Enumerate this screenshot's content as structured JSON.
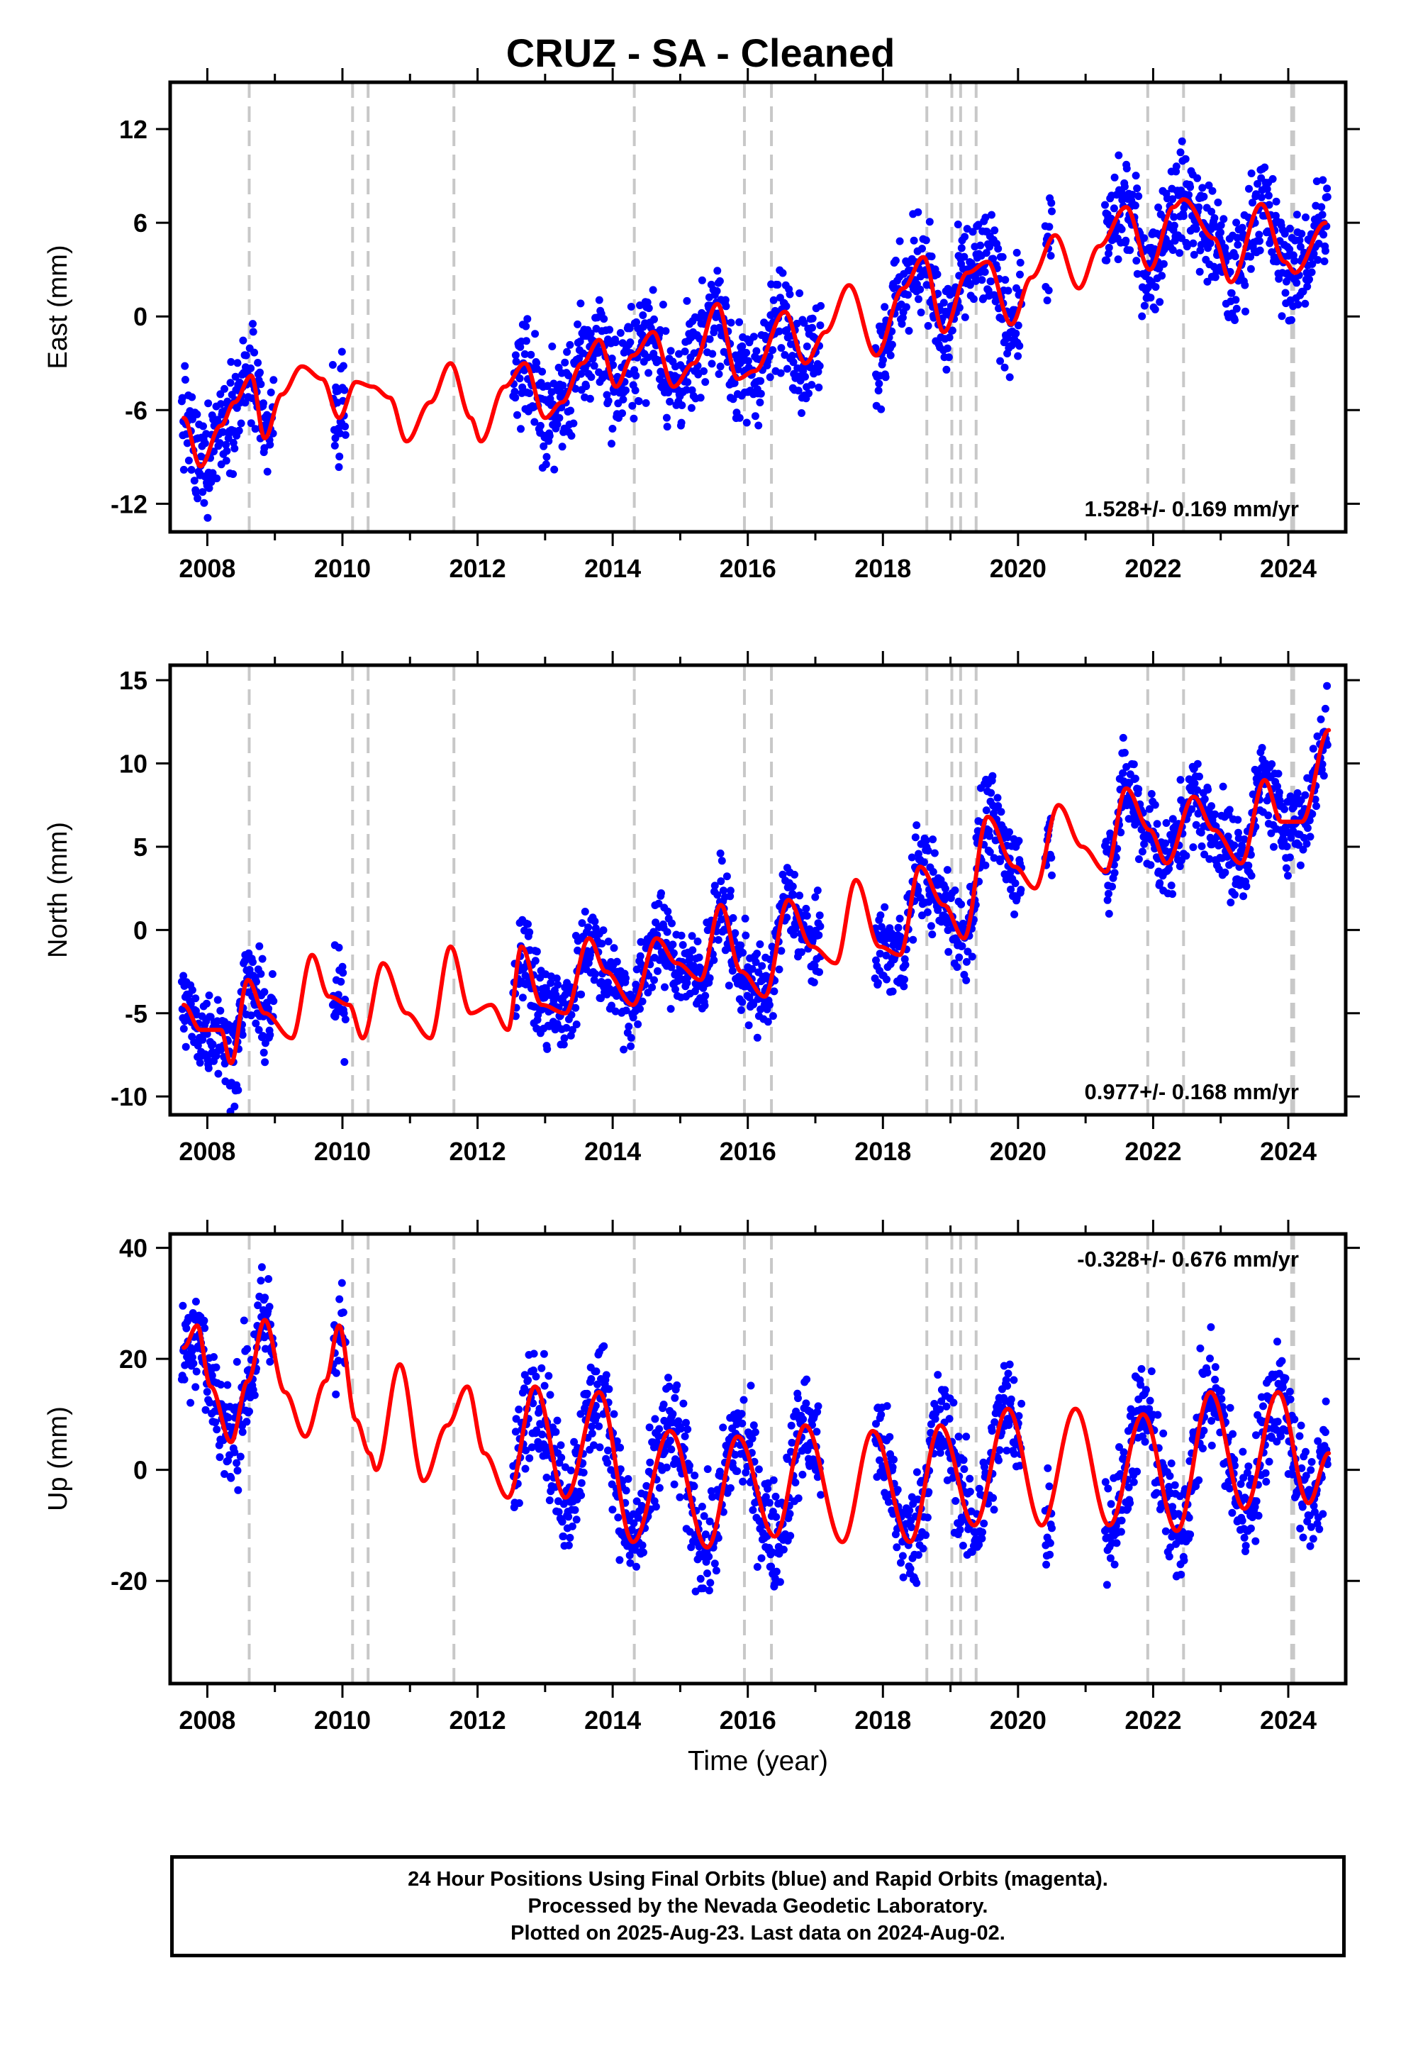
{
  "title": "CRUZ  - SA - Cleaned",
  "xlabel": "Time (year)",
  "footer": {
    "line1": "24 Hour Positions Using Final Orbits (blue) and Rapid Orbits (magenta).",
    "line2": "Processed by the Nevada Geodetic Laboratory.",
    "line3": "Plotted on 2025-Aug-23. Last data on 2024-Aug-02."
  },
  "colors": {
    "data": "#0000ff",
    "model": "#ff0000",
    "event_lines": "#c8c8c8"
  },
  "chart_data": [
    {
      "type": "scatter",
      "component": "east",
      "ylabel": "East (mm)",
      "xlim": [
        2007.45,
        2024.85
      ],
      "ylim": [
        -13.8,
        15
      ],
      "yticks": [
        -12,
        -6,
        0,
        6,
        12
      ],
      "xticks": [
        2008,
        2010,
        2012,
        2014,
        2016,
        2018,
        2020,
        2022,
        2024
      ],
      "rate": "1.528+/- 0.169 mm/yr",
      "rate_position": "bottom-right",
      "trend": {
        "value_at_2016": -1.5,
        "slope_mm_per_yr": 1.528
      },
      "annual_amplitude": 2.5,
      "scatter_sd": 1.6,
      "model_points": [
        [
          2007.65,
          -6.5
        ],
        [
          2007.9,
          -9.6
        ],
        [
          2008.2,
          -7.0
        ],
        [
          2008.4,
          -5.5
        ],
        [
          2008.65,
          -3.8
        ],
        [
          2008.85,
          -7.8
        ],
        [
          2009.1,
          -5.0
        ],
        [
          2009.4,
          -3.2
        ],
        [
          2009.7,
          -4.0
        ],
        [
          2009.95,
          -6.5
        ],
        [
          2010.2,
          -4.2
        ],
        [
          2010.45,
          -4.5
        ],
        [
          2010.7,
          -5.2
        ],
        [
          2010.95,
          -8.0
        ],
        [
          2011.3,
          -5.5
        ],
        [
          2011.6,
          -3.0
        ],
        [
          2011.9,
          -6.5
        ],
        [
          2012.05,
          -8.0
        ],
        [
          2012.4,
          -4.5
        ],
        [
          2012.7,
          -3.0
        ],
        [
          2013.0,
          -6.5
        ],
        [
          2013.25,
          -5.5
        ],
        [
          2013.55,
          -3.0
        ],
        [
          2013.8,
          -1.5
        ],
        [
          2014.05,
          -4.5
        ],
        [
          2014.3,
          -2.5
        ],
        [
          2014.6,
          -1.0
        ],
        [
          2014.9,
          -4.5
        ],
        [
          2015.2,
          -3.0
        ],
        [
          2015.55,
          0.8
        ],
        [
          2015.85,
          -4.0
        ],
        [
          2016.1,
          -3.5
        ],
        [
          2016.55,
          0.3
        ],
        [
          2016.85,
          -3.0
        ],
        [
          2017.15,
          -1.0
        ],
        [
          2017.5,
          2.0
        ],
        [
          2017.9,
          -2.5
        ],
        [
          2018.3,
          1.8
        ],
        [
          2018.6,
          3.8
        ],
        [
          2018.9,
          -1.0
        ],
        [
          2019.25,
          2.8
        ],
        [
          2019.55,
          3.5
        ],
        [
          2019.9,
          -0.5
        ],
        [
          2020.2,
          2.5
        ],
        [
          2020.55,
          5.2
        ],
        [
          2020.9,
          1.8
        ],
        [
          2021.2,
          4.5
        ],
        [
          2021.6,
          7.0
        ],
        [
          2021.95,
          3.0
        ],
        [
          2022.3,
          7.0
        ],
        [
          2022.45,
          7.5
        ],
        [
          2022.9,
          5.0
        ],
        [
          2023.15,
          2.2
        ],
        [
          2023.6,
          7.2
        ],
        [
          2023.95,
          3.5
        ],
        [
          2024.1,
          2.8
        ],
        [
          2024.55,
          6.0
        ]
      ]
    },
    {
      "type": "scatter",
      "component": "north",
      "ylabel": "North (mm)",
      "xlim": [
        2007.45,
        2024.85
      ],
      "ylim": [
        -11.1,
        15.9
      ],
      "yticks": [
        -10,
        -5,
        0,
        5,
        10,
        15
      ],
      "xticks": [
        2008,
        2010,
        2012,
        2014,
        2016,
        2018,
        2020,
        2022,
        2024
      ],
      "rate": "0.977+/- 0.168 mm/yr",
      "rate_position": "bottom-right",
      "trend": {
        "value_at_2016": -0.8,
        "slope_mm_per_yr": 0.977
      },
      "annual_amplitude": 2.0,
      "scatter_sd": 1.3,
      "model_points": [
        [
          2007.65,
          -4.5
        ],
        [
          2007.9,
          -6.0
        ],
        [
          2008.2,
          -6.0
        ],
        [
          2008.35,
          -8.0
        ],
        [
          2008.6,
          -3.0
        ],
        [
          2008.85,
          -5.0
        ],
        [
          2009.25,
          -6.5
        ],
        [
          2009.55,
          -1.5
        ],
        [
          2009.8,
          -4.0
        ],
        [
          2010.1,
          -4.5
        ],
        [
          2010.3,
          -6.5
        ],
        [
          2010.6,
          -2.0
        ],
        [
          2010.95,
          -5.0
        ],
        [
          2011.3,
          -6.5
        ],
        [
          2011.6,
          -1.0
        ],
        [
          2011.9,
          -5.0
        ],
        [
          2012.2,
          -4.5
        ],
        [
          2012.45,
          -6.0
        ],
        [
          2012.65,
          -1.0
        ],
        [
          2012.95,
          -4.5
        ],
        [
          2013.3,
          -5.0
        ],
        [
          2013.65,
          -0.5
        ],
        [
          2013.9,
          -2.5
        ],
        [
          2014.3,
          -4.5
        ],
        [
          2014.65,
          -0.5
        ],
        [
          2014.95,
          -2.0
        ],
        [
          2015.3,
          -3.0
        ],
        [
          2015.6,
          1.5
        ],
        [
          2015.9,
          -2.5
        ],
        [
          2016.25,
          -4.0
        ],
        [
          2016.6,
          1.8
        ],
        [
          2016.95,
          -1.0
        ],
        [
          2017.3,
          -2.0
        ],
        [
          2017.6,
          3.0
        ],
        [
          2017.95,
          -1.0
        ],
        [
          2018.25,
          -1.5
        ],
        [
          2018.55,
          3.8
        ],
        [
          2018.9,
          1.5
        ],
        [
          2019.2,
          -0.5
        ],
        [
          2019.55,
          6.8
        ],
        [
          2019.95,
          3.8
        ],
        [
          2020.25,
          2.5
        ],
        [
          2020.6,
          7.5
        ],
        [
          2020.95,
          5.0
        ],
        [
          2021.3,
          3.5
        ],
        [
          2021.6,
          8.5
        ],
        [
          2021.95,
          6.0
        ],
        [
          2022.2,
          4.0
        ],
        [
          2022.6,
          8.0
        ],
        [
          2022.9,
          6.0
        ],
        [
          2023.3,
          4.0
        ],
        [
          2023.65,
          9.0
        ],
        [
          2023.9,
          6.5
        ],
        [
          2024.2,
          6.5
        ],
        [
          2024.6,
          12.0
        ]
      ]
    },
    {
      "type": "scatter",
      "component": "up",
      "ylabel": "Up (mm)",
      "xlabel": "Time (year)",
      "xlim": [
        2007.45,
        2024.85
      ],
      "ylim": [
        -38.5,
        42.5
      ],
      "yticks": [
        -20,
        0,
        20,
        40
      ],
      "xticks": [
        2008,
        2010,
        2012,
        2014,
        2016,
        2018,
        2020,
        2022,
        2024
      ],
      "rate": "-0.328+/- 0.676 mm/yr",
      "rate_position": "top-right",
      "trend": {
        "value_at_2016": -2.0,
        "slope_mm_per_yr": -0.328
      },
      "annual_amplitude": 11,
      "scatter_sd": 5.0,
      "model_points": [
        [
          2007.65,
          22
        ],
        [
          2007.85,
          26
        ],
        [
          2008.05,
          15
        ],
        [
          2008.35,
          5
        ],
        [
          2008.6,
          16
        ],
        [
          2008.85,
          27
        ],
        [
          2009.15,
          14
        ],
        [
          2009.45,
          6
        ],
        [
          2009.75,
          16
        ],
        [
          2009.95,
          26
        ],
        [
          2010.2,
          9
        ],
        [
          2010.4,
          3
        ],
        [
          2010.5,
          0
        ],
        [
          2010.85,
          19
        ],
        [
          2011.2,
          -2
        ],
        [
          2011.55,
          8
        ],
        [
          2011.85,
          15
        ],
        [
          2012.1,
          3
        ],
        [
          2012.45,
          -5
        ],
        [
          2012.85,
          15
        ],
        [
          2013.3,
          -5
        ],
        [
          2013.8,
          14
        ],
        [
          2014.3,
          -13
        ],
        [
          2014.85,
          7
        ],
        [
          2015.4,
          -14
        ],
        [
          2015.85,
          6
        ],
        [
          2016.4,
          -12
        ],
        [
          2016.85,
          8
        ],
        [
          2017.4,
          -13
        ],
        [
          2017.85,
          7
        ],
        [
          2018.4,
          -13
        ],
        [
          2018.85,
          8
        ],
        [
          2019.35,
          -10
        ],
        [
          2019.85,
          11
        ],
        [
          2020.35,
          -10
        ],
        [
          2020.85,
          11
        ],
        [
          2021.35,
          -10
        ],
        [
          2021.85,
          10
        ],
        [
          2022.35,
          -11
        ],
        [
          2022.85,
          14
        ],
        [
          2023.35,
          -7
        ],
        [
          2023.85,
          14
        ],
        [
          2024.3,
          -6
        ],
        [
          2024.6,
          3
        ]
      ]
    }
  ],
  "event_lines": [
    2008.62,
    2010.15,
    2010.38,
    2011.65,
    2014.32,
    2015.95,
    2016.35,
    2018.65,
    2019.02,
    2019.15,
    2019.38,
    2021.92,
    2022.45,
    2024.05,
    2024.08
  ],
  "data_coverage": [
    [
      2007.62,
      2008.98
    ],
    [
      2009.85,
      2010.05
    ],
    [
      2012.52,
      2017.08
    ],
    [
      2017.88,
      2020.05
    ],
    [
      2020.4,
      2020.5
    ],
    [
      2021.28,
      2024.58
    ]
  ]
}
